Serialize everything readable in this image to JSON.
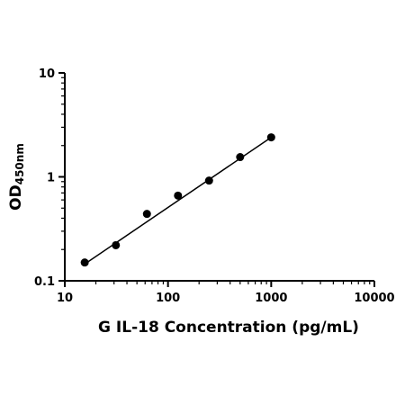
{
  "chart_data": {
    "type": "scatter",
    "title": "",
    "xlabel": "G IL-18 Concentration (pg/mL)",
    "ylabel_main": "OD",
    "ylabel_sub": "450nm",
    "x_scale": "log",
    "y_scale": "log",
    "xlim": [
      10,
      10000
    ],
    "ylim": [
      0.1,
      10
    ],
    "x_ticks": [
      10,
      100,
      1000,
      10000
    ],
    "x_tick_labels": [
      "10",
      "100",
      "1000",
      "10000"
    ],
    "y_ticks": [
      0.1,
      1,
      10
    ],
    "y_tick_labels": [
      "0.1",
      "1",
      "10"
    ],
    "grid": false,
    "series": [
      {
        "x": [
          15.6,
          31.25,
          62.5,
          125,
          250,
          500,
          1000
        ],
        "y": [
          0.15,
          0.22,
          0.44,
          0.66,
          0.92,
          1.55,
          2.4
        ]
      }
    ],
    "fit_line": {
      "x": [
        15.6,
        1000
      ],
      "y": [
        0.145,
        2.4
      ]
    }
  }
}
